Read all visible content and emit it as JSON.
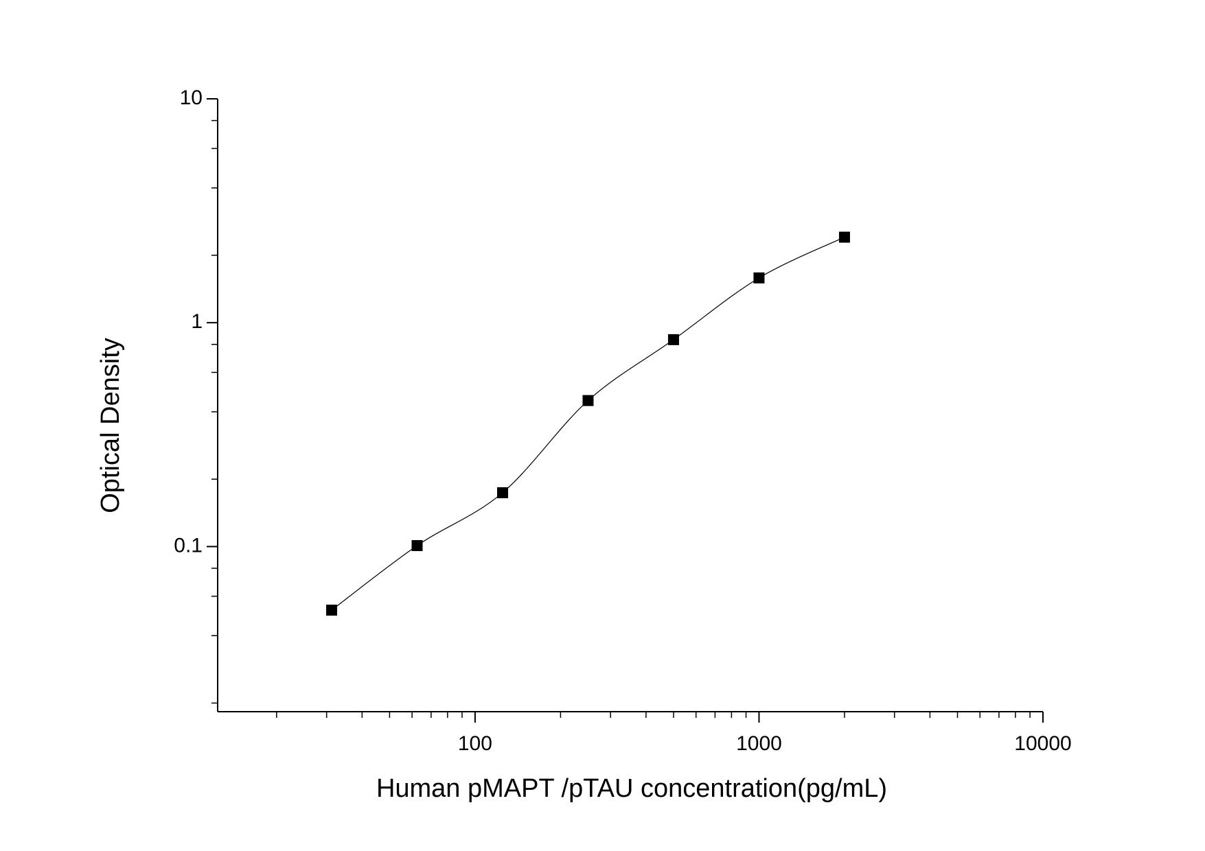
{
  "chart_data": {
    "type": "scatter",
    "x_label": "Human pMAPT /pTAU concentration(pg/mL)",
    "y_label": "Optical Density",
    "x_scale": "log",
    "y_scale": "log",
    "xlim": [
      12.4,
      10000
    ],
    "ylim": [
      0.0183,
      10
    ],
    "xticks": [
      100,
      1000,
      10000
    ],
    "yticks": [
      0.1,
      1,
      10
    ],
    "xminorticks": [
      20,
      30,
      40,
      50,
      60,
      70,
      80,
      90,
      200,
      300,
      400,
      500,
      600,
      700,
      800,
      900,
      2000,
      3000,
      4000,
      5000,
      6000,
      7000,
      8000,
      9000
    ],
    "yminorticks": [
      0.02,
      0.04,
      0.06,
      0.08,
      0.2,
      0.4,
      0.6,
      0.8,
      2,
      4,
      6,
      8
    ],
    "series": [
      {
        "color": "#000000",
        "x": [
          31.25,
          62.5,
          125,
          250,
          500,
          1000,
          2000
        ],
        "values": [
          0.052,
          0.101,
          0.174,
          0.449,
          0.84,
          1.585,
          2.41
        ]
      }
    ]
  }
}
